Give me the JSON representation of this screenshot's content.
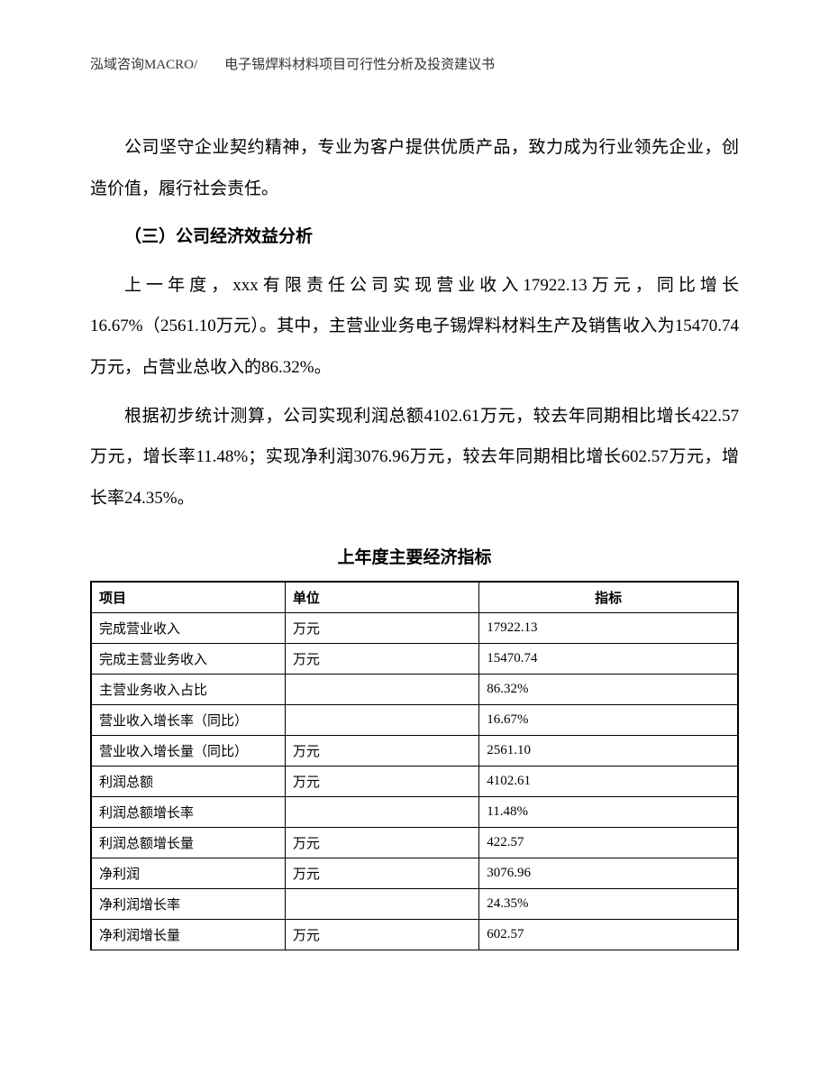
{
  "header": {
    "text": "泓域咨询MACRO/　　电子锡焊料材料项目可行性分析及投资建议书"
  },
  "paragraphs": {
    "p1": "公司坚守企业契约精神，专业为客户提供优质产品，致力成为行业领先企业，创造价值，履行社会责任。",
    "heading": "（三）公司经济效益分析",
    "p2": "上一年度，xxx有限责任公司实现营业收入17922.13万元，同比增长16.67%（2561.10万元）。其中，主营业业务电子锡焊料材料生产及销售收入为15470.74万元，占营业总收入的86.32%。",
    "p3": "根据初步统计测算，公司实现利润总额4102.61万元，较去年同期相比增长422.57万元，增长率11.48%；实现净利润3076.96万元，较去年同期相比增长602.57万元，增长率24.35%。"
  },
  "table": {
    "title": "上年度主要经济指标",
    "columns": {
      "c0": "项目",
      "c1": "单位",
      "c2": "指标"
    },
    "rows": [
      {
        "item": "完成营业收入",
        "unit": "万元",
        "value": "17922.13"
      },
      {
        "item": "完成主营业务收入",
        "unit": "万元",
        "value": "15470.74"
      },
      {
        "item": "主营业务收入占比",
        "unit": "",
        "value": "86.32%"
      },
      {
        "item": "营业收入增长率（同比）",
        "unit": "",
        "value": "16.67%"
      },
      {
        "item": "营业收入增长量（同比）",
        "unit": "万元",
        "value": "2561.10"
      },
      {
        "item": "利润总额",
        "unit": "万元",
        "value": "4102.61"
      },
      {
        "item": "利润总额增长率",
        "unit": "",
        "value": "11.48%"
      },
      {
        "item": "利润总额增长量",
        "unit": "万元",
        "value": "422.57"
      },
      {
        "item": "净利润",
        "unit": "万元",
        "value": "3076.96"
      },
      {
        "item": "净利润增长率",
        "unit": "",
        "value": "24.35%"
      },
      {
        "item": "净利润增长量",
        "unit": "万元",
        "value": "602.57"
      }
    ]
  }
}
